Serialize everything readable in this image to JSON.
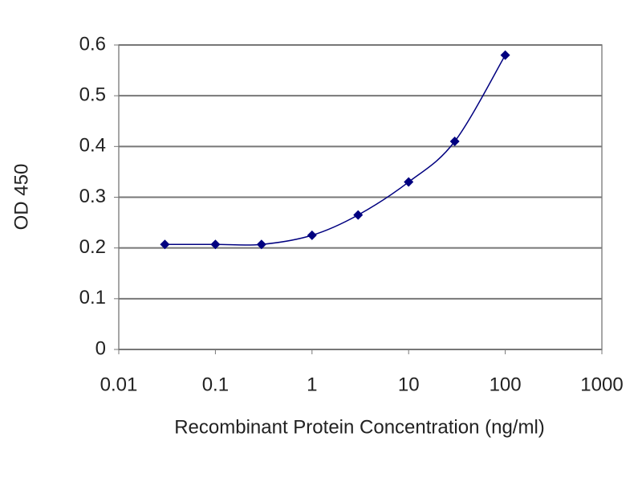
{
  "chart_data": {
    "type": "line",
    "xlabel": "Recombinant Protein Concentration (ng/ml)",
    "ylabel": "OD 450",
    "x": [
      0.03,
      0.1,
      0.3,
      1,
      3,
      10,
      30,
      100
    ],
    "values": [
      0.207,
      0.207,
      0.207,
      0.225,
      0.265,
      0.33,
      0.41,
      0.58
    ],
    "color": "#000080",
    "xscale": "log",
    "xlim": [
      0.01,
      1000
    ],
    "xticks": [
      0.01,
      0.1,
      1,
      10,
      100,
      1000
    ],
    "ylim": [
      0,
      0.6
    ],
    "yticks": [
      0,
      0.1,
      0.2,
      0.3,
      0.4,
      0.5,
      0.6
    ],
    "grid": true
  }
}
